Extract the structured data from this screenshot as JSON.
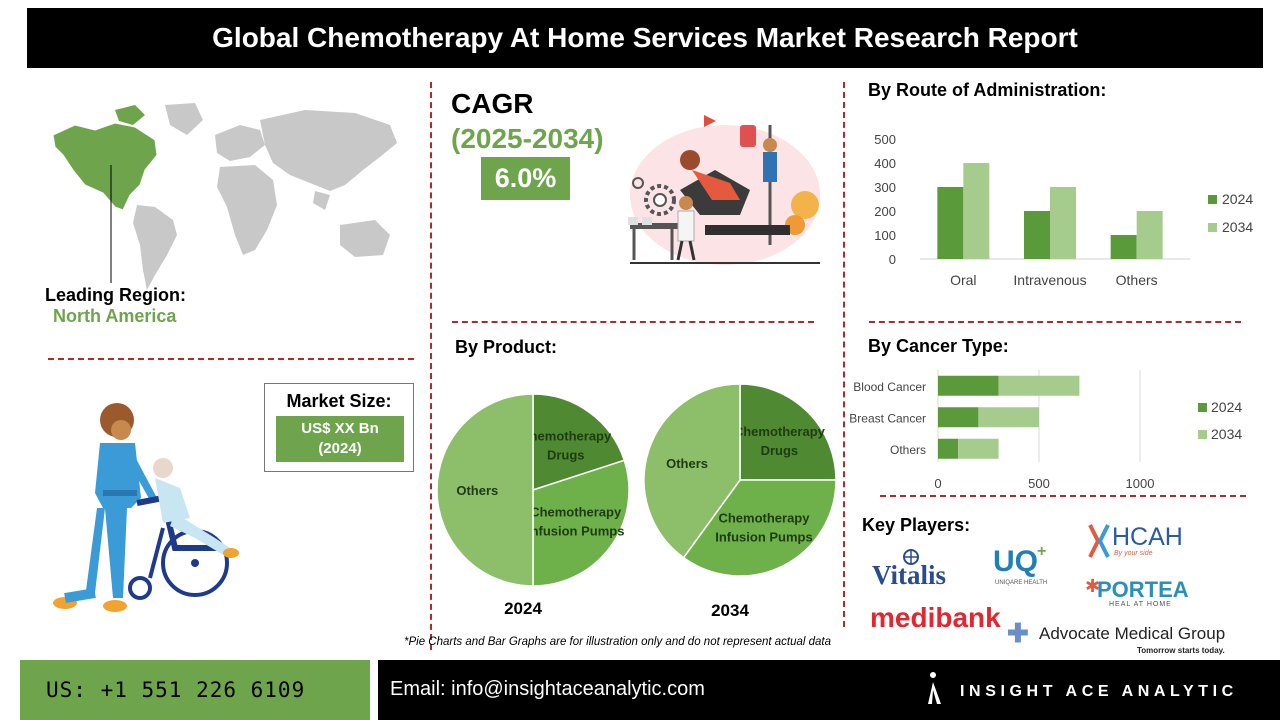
{
  "header": {
    "title": "Global Chemotherapy At Home Services Market Research Report"
  },
  "region": {
    "label": "Leading Region:",
    "value": "North America"
  },
  "cagr": {
    "label": "CAGR",
    "period": "(2025-2034)",
    "value": "6.0%"
  },
  "market_size": {
    "label": "Market Size:",
    "value_line1": "US$ XX Bn",
    "value_line2": "(2024)"
  },
  "sections": {
    "route": "By Route of Administration:",
    "product": "By Product:",
    "cancer": "By Cancer Type:",
    "players": "Key Players:"
  },
  "colors": {
    "dark_green": "#5b9a3a",
    "light_green": "#a6cc8d",
    "accent_green": "#6ea54c",
    "dash_red": "#b52828"
  },
  "chart_data": [
    {
      "type": "bar",
      "title": "By Route of Administration:",
      "categories": [
        "Oral",
        "Intravenous",
        "Others"
      ],
      "series": [
        {
          "name": "2024",
          "values": [
            300,
            200,
            100
          ]
        },
        {
          "name": "2034",
          "values": [
            400,
            300,
            200
          ]
        }
      ],
      "ylim": [
        0,
        500
      ],
      "yticks": [
        0,
        100,
        200,
        300,
        400,
        500
      ],
      "legend": "right"
    },
    {
      "type": "pie",
      "title": "2024",
      "slices": [
        {
          "label": "Chemotherapy Drugs",
          "value": 20
        },
        {
          "label": "Chemotherapy Infusion Pumps",
          "value": 30
        },
        {
          "label": "Others",
          "value": 50
        }
      ]
    },
    {
      "type": "pie",
      "title": "2034",
      "slices": [
        {
          "label": "Chemotherapy Drugs",
          "value": 25
        },
        {
          "label": "Chemotherapy Infusion Pumps",
          "value": 35
        },
        {
          "label": "Others",
          "value": 40
        }
      ]
    },
    {
      "type": "bar",
      "orientation": "horizontal",
      "stacked": true,
      "title": "By Cancer Type:",
      "categories": [
        "Blood Cancer",
        "Breast Cancer",
        "Others"
      ],
      "series": [
        {
          "name": "2024",
          "values": [
            300,
            200,
            100
          ]
        },
        {
          "name": "2034",
          "values": [
            400,
            300,
            200
          ]
        }
      ],
      "xlim": [
        0,
        1000
      ],
      "xticks": [
        0,
        500,
        1000
      ],
      "legend": "right"
    }
  ],
  "players": {
    "vitalis": "Vitalis",
    "uq": "UQ",
    "uq_sub": "UNIQARE HEALTH",
    "hcah": "HCAH",
    "hcah_sub": "By your side",
    "portea": "PORTEA",
    "portea_sub": "HEAL AT HOME",
    "medibank": "medibank",
    "advocate": "Advocate Medical Group",
    "advocate_sub": "Tomorrow starts today."
  },
  "disclaimer": "*Pie Charts and Bar Graphs are for illustration only and do not represent actual data",
  "footer": {
    "phone": "US: +1 551 226 6109",
    "email": "Email: info@insightaceanalytic.com",
    "brand": "INSIGHT ACE ANALYTIC"
  }
}
